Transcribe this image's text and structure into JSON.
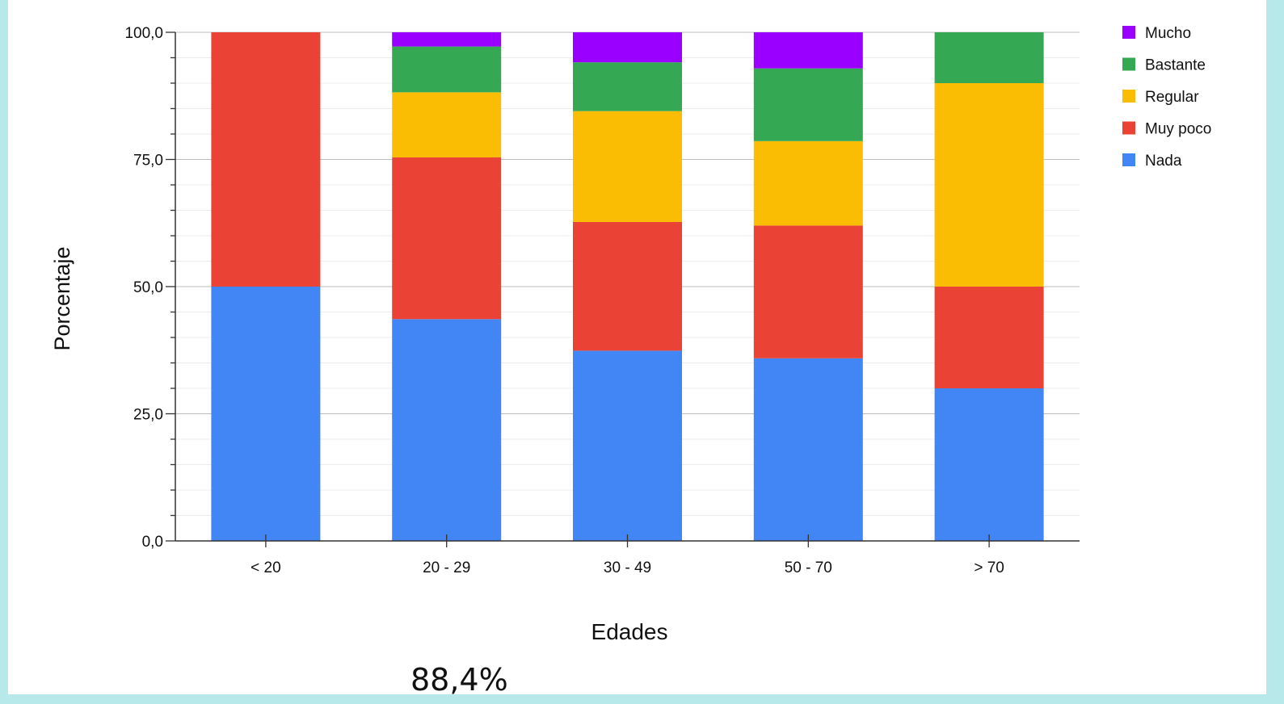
{
  "chart_data": {
    "type": "bar",
    "stacked": true,
    "xlabel": "Edades",
    "ylabel": "Porcentaje",
    "ylim": [
      0,
      100
    ],
    "yticks": [
      "0,0",
      "25,0",
      "50,0",
      "75,0",
      "100,0"
    ],
    "grid": true,
    "legend_position": "right",
    "categories": [
      "< 20",
      "20 - 29",
      "30 - 49",
      "50 - 70",
      "> 70"
    ],
    "series": [
      {
        "name": "Nada",
        "color": "#4285f4",
        "values": [
          50.0,
          43.6,
          37.4,
          35.9,
          30.0
        ]
      },
      {
        "name": "Muy poco",
        "color": "#ea4335",
        "values": [
          50.0,
          31.8,
          25.3,
          26.1,
          20.0
        ]
      },
      {
        "name": "Regular",
        "color": "#fbbc04",
        "values": [
          0.0,
          12.8,
          21.8,
          16.6,
          40.0
        ]
      },
      {
        "name": "Bastante",
        "color": "#34a853",
        "values": [
          0.0,
          9.0,
          9.6,
          14.3,
          10.0
        ]
      },
      {
        "name": "Mucho",
        "color": "#9900ff",
        "values": [
          0.0,
          2.8,
          5.9,
          7.1,
          0.0
        ]
      }
    ]
  },
  "footer": {
    "value": "88,4%"
  },
  "colors": {
    "frame": "#b7e8ea"
  }
}
